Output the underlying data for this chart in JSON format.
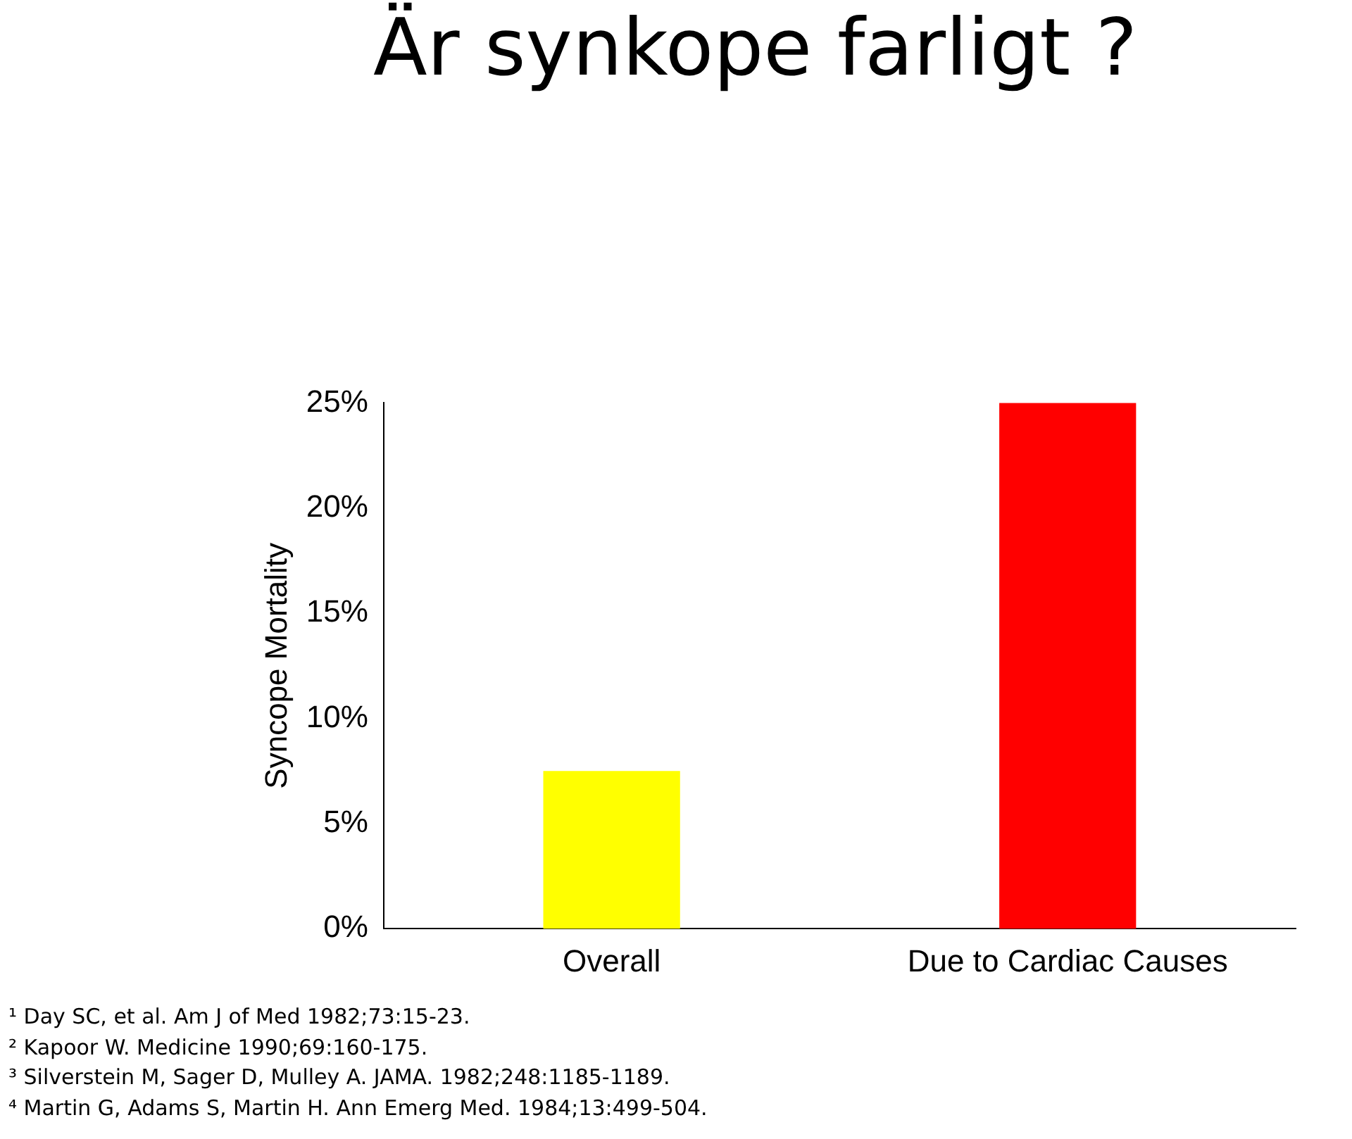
{
  "chart_data": {
    "type": "bar",
    "title": "Är synkope farligt ?",
    "ylabel": "Syncope Mortality",
    "categories": [
      "Overall",
      "Due to Cardiac Causes"
    ],
    "values": [
      7.5,
      25
    ],
    "colors": [
      "#ffff00",
      "#ff0000"
    ],
    "ylim": [
      0,
      25
    ],
    "yticks": [
      {
        "value": 0,
        "label": "0%"
      },
      {
        "value": 5,
        "label": "5%"
      },
      {
        "value": 10,
        "label": "10%"
      },
      {
        "value": 15,
        "label": "15%"
      },
      {
        "value": 20,
        "label": "20%"
      },
      {
        "value": 25,
        "label": "25%"
      }
    ],
    "grid": false,
    "legend": false,
    "annotations": [
      "¹ Day SC, et al. Am J of Med 1982;73:15-23.",
      "² Kapoor W. Medicine 1990;69:160-175.",
      "³ Silverstein M, Sager D, Mulley A. JAMA. 1982;248:1185-1189.",
      "⁴ Martin G, Adams S, Martin H. Ann Emerg Med. 1984;13:499-504."
    ]
  }
}
